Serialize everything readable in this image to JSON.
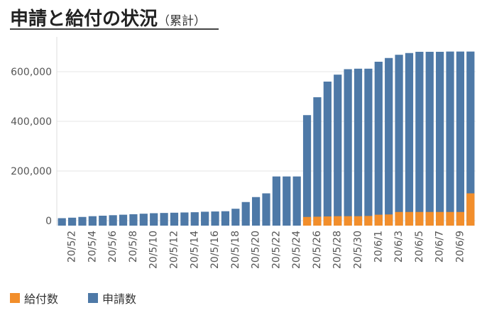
{
  "title": "申請と給付の状況",
  "subtitle": "（累計）",
  "colors": {
    "applications": "#4e79a7",
    "payments": "#f28e2b",
    "grid": "#e6e6e6"
  },
  "chart_data": {
    "type": "bar",
    "stacked": false,
    "title": "申請と給付の状況（累計）",
    "xlabel": "",
    "ylabel": "",
    "ylim": [
      -20000,
      720000
    ],
    "yticks": [
      0,
      200000,
      400000,
      600000
    ],
    "ytick_labels": [
      "0",
      "200,000",
      "400,000",
      "600,000"
    ],
    "grid": true,
    "legend_position": "bottom-left",
    "categories": [
      "20/5/1",
      "20/5/2",
      "20/5/3",
      "20/5/4",
      "20/5/5",
      "20/5/6",
      "20/5/7",
      "20/5/8",
      "20/5/9",
      "20/5/10",
      "20/5/11",
      "20/5/12",
      "20/5/13",
      "20/5/14",
      "20/5/15",
      "20/5/16",
      "20/5/17",
      "20/5/18",
      "20/5/19",
      "20/5/20",
      "20/5/21",
      "20/5/22",
      "20/5/23",
      "20/5/24",
      "20/5/25",
      "20/5/26",
      "20/5/27",
      "20/5/28",
      "20/5/29",
      "20/5/30",
      "20/5/31",
      "20/6/1",
      "20/6/2",
      "20/6/3",
      "20/6/4",
      "20/6/5",
      "20/6/6",
      "20/6/7",
      "20/6/8",
      "20/6/9",
      "20/6/10"
    ],
    "x_tick_labels": [
      "20/5/2",
      "20/5/4",
      "20/5/6",
      "20/5/8",
      "20/5/10",
      "20/5/12",
      "20/5/14",
      "20/5/16",
      "20/5/18",
      "20/5/20",
      "20/5/22",
      "20/5/24",
      "20/5/26",
      "20/5/28",
      "20/5/30",
      "20/6/1",
      "20/6/3",
      "20/6/5",
      "20/6/7",
      "20/6/9"
    ],
    "series": [
      {
        "name": "申請数",
        "color": "#4e79a7",
        "values": [
          10000,
          12000,
          15000,
          18000,
          20000,
          22000,
          24000,
          26000,
          28000,
          30000,
          31000,
          32000,
          33000,
          34000,
          36000,
          37000,
          38000,
          48000,
          75000,
          95000,
          110000,
          178000,
          178000,
          178000,
          425000,
          497000,
          560000,
          588000,
          610000,
          612000,
          612000,
          640000,
          655000,
          668000,
          675000,
          680000,
          680000,
          680000,
          681000,
          681000,
          681000
        ]
      },
      {
        "name": "給付数",
        "color": "#f28e2b",
        "values": [
          0,
          0,
          0,
          0,
          0,
          0,
          0,
          0,
          0,
          0,
          0,
          0,
          0,
          0,
          0,
          0,
          0,
          0,
          0,
          0,
          0,
          0,
          0,
          0,
          15000,
          16000,
          17000,
          18000,
          18000,
          18000,
          19000,
          24000,
          25000,
          35000,
          35000,
          35000,
          35000,
          35000,
          35000,
          35000,
          110000
        ]
      }
    ]
  },
  "legend": [
    {
      "label": "給付数",
      "color": "#f28e2b"
    },
    {
      "label": "申請数",
      "color": "#4e79a7"
    }
  ]
}
